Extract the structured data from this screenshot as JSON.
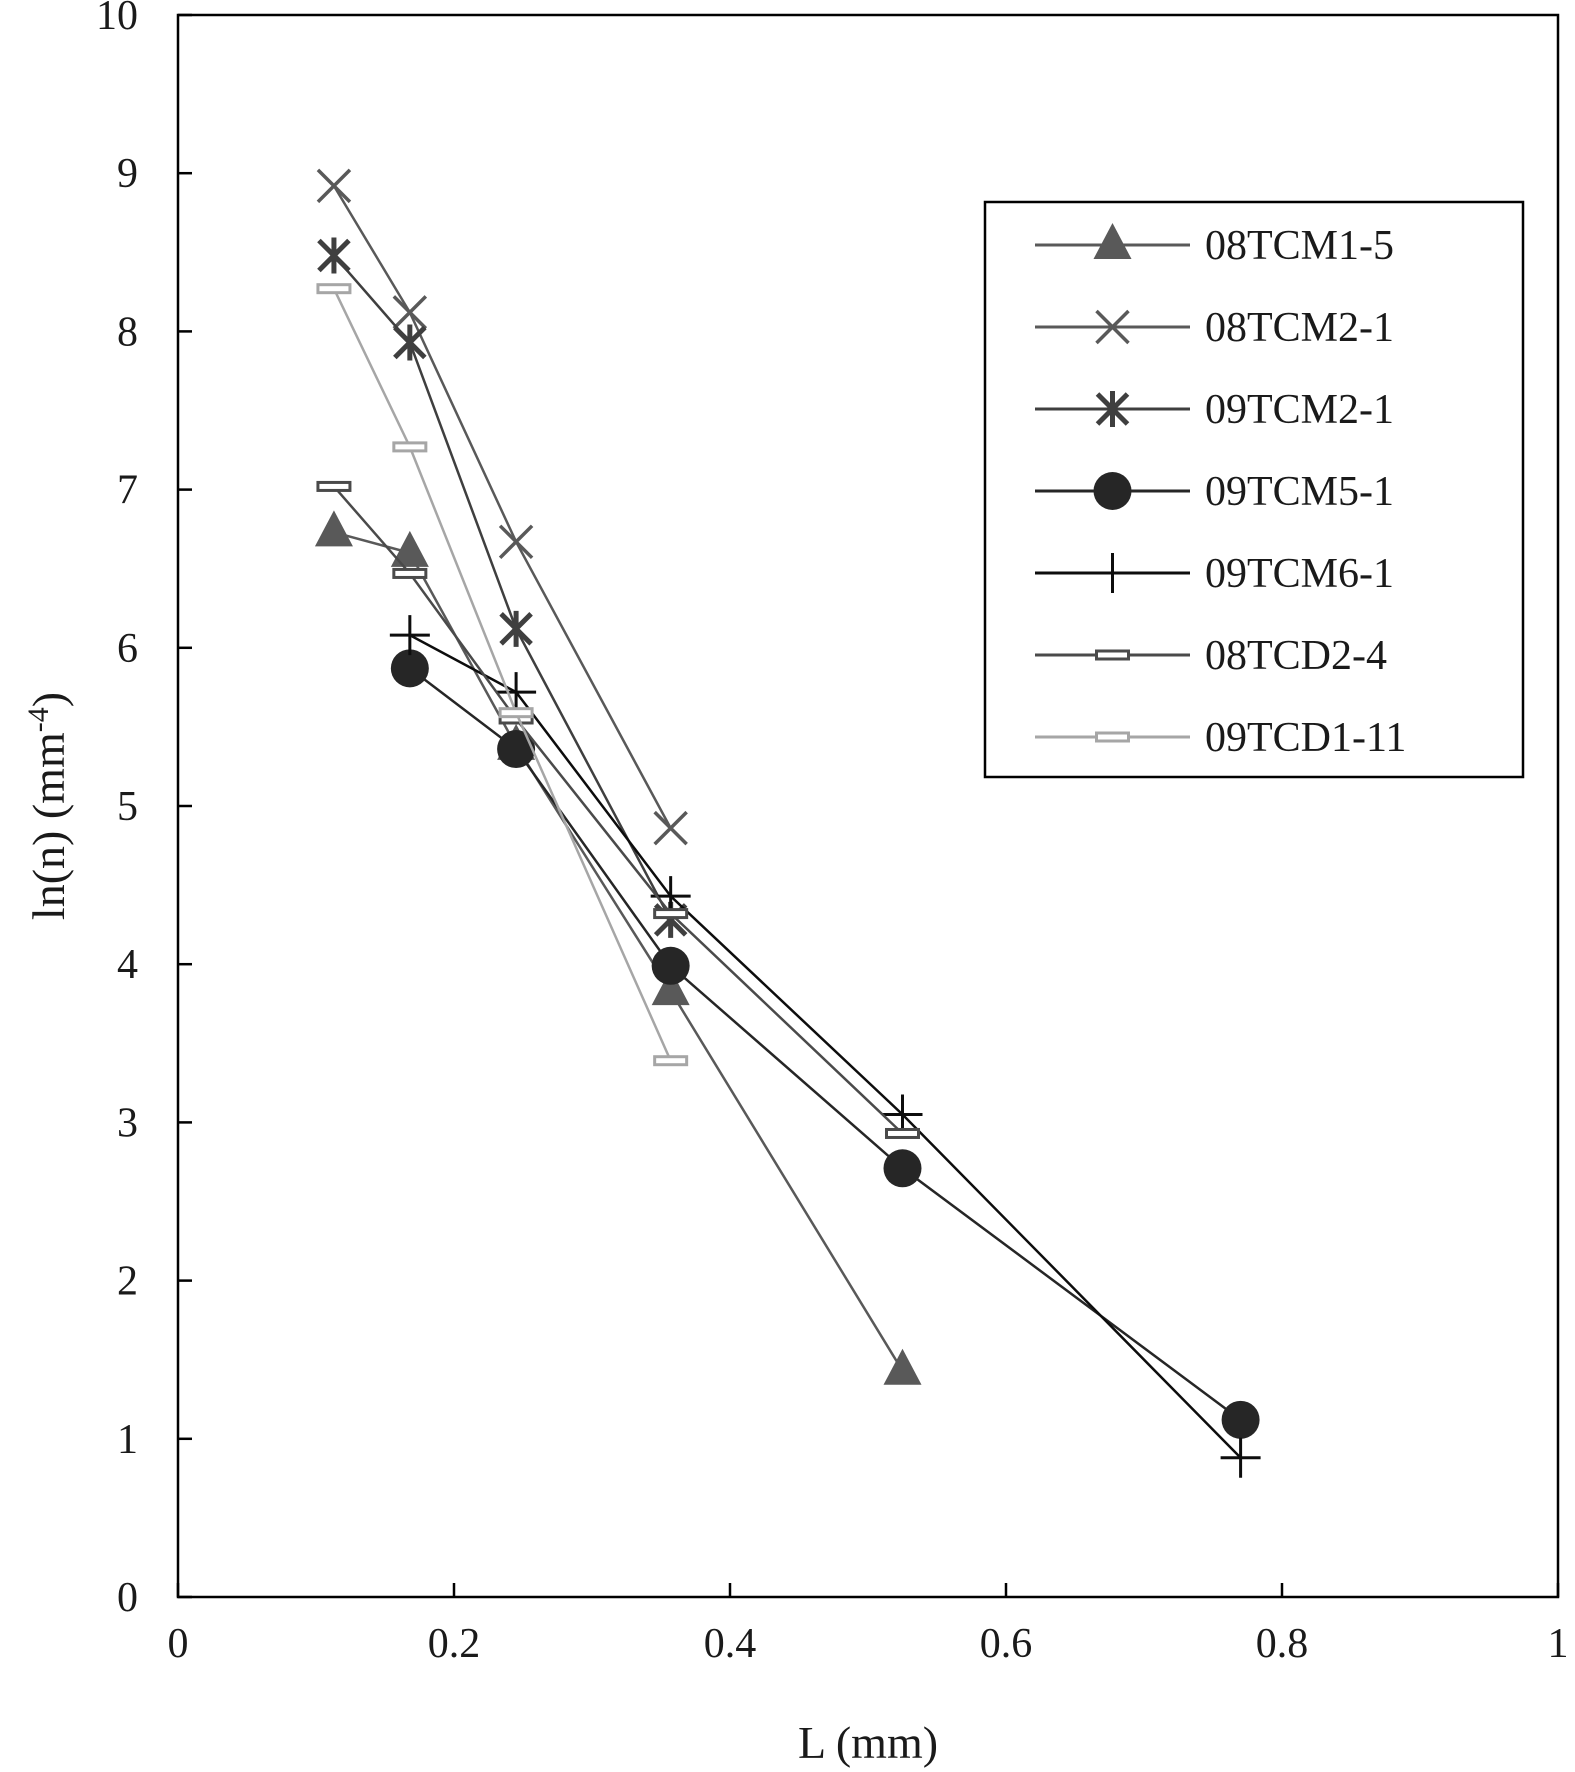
{
  "chart_data": {
    "type": "line",
    "title": "",
    "xlabel": "L (mm)",
    "ylabel_main": "ln(n) (mm",
    "ylabel_sup": "-4",
    "ylabel_end": ")",
    "xlim": [
      0,
      1
    ],
    "ylim": [
      0,
      10
    ],
    "xticks": [
      0,
      0.2,
      0.4,
      0.6,
      0.8,
      1
    ],
    "xtick_labels": [
      "0",
      "0.2",
      "0.4",
      "0.6",
      "0.8",
      "1"
    ],
    "yticks": [
      0,
      1,
      2,
      3,
      4,
      5,
      6,
      7,
      8,
      9,
      10
    ],
    "ytick_labels": [
      "0",
      "1",
      "2",
      "3",
      "4",
      "5",
      "6",
      "7",
      "8",
      "9",
      "10"
    ],
    "grid": false,
    "legend_position": "top-right",
    "series": [
      {
        "name": "08TCM1-5",
        "marker": "triangle",
        "color": "#595959",
        "x": [
          0.113,
          0.168,
          0.245,
          0.357,
          0.525
        ],
        "y": [
          6.73,
          6.6,
          5.38,
          3.83,
          1.43
        ]
      },
      {
        "name": "08TCM2-1",
        "marker": "x",
        "color": "#595959",
        "x": [
          0.113,
          0.168,
          0.245,
          0.357
        ],
        "y": [
          8.92,
          8.12,
          6.67,
          4.86
        ]
      },
      {
        "name": "09TCM2-1",
        "marker": "star",
        "color": "#3f3f3f",
        "x": [
          0.113,
          0.168,
          0.245,
          0.357
        ],
        "y": [
          8.48,
          7.93,
          6.12,
          4.28
        ]
      },
      {
        "name": "09TCM5-1",
        "marker": "circle",
        "color": "#262626",
        "x": [
          0.168,
          0.245,
          0.357,
          0.525,
          0.77
        ],
        "y": [
          5.87,
          5.36,
          3.99,
          2.71,
          1.12
        ]
      },
      {
        "name": "09TCM6-1",
        "marker": "plus",
        "color": "#0d0d0d",
        "x": [
          0.168,
          0.245,
          0.357,
          0.525,
          0.77
        ],
        "y": [
          6.08,
          5.72,
          4.43,
          3.05,
          0.88
        ]
      },
      {
        "name": "08TCD2-4",
        "marker": "dash",
        "color": "#4a4a4a",
        "x": [
          0.113,
          0.168,
          0.245,
          0.357,
          0.525
        ],
        "y": [
          7.02,
          6.47,
          5.55,
          4.32,
          2.93
        ]
      },
      {
        "name": "09TCD1-11",
        "marker": "dash",
        "color": "#a6a6a6",
        "x": [
          0.113,
          0.168,
          0.245,
          0.357
        ],
        "y": [
          8.27,
          7.27,
          5.59,
          3.39
        ]
      }
    ]
  }
}
